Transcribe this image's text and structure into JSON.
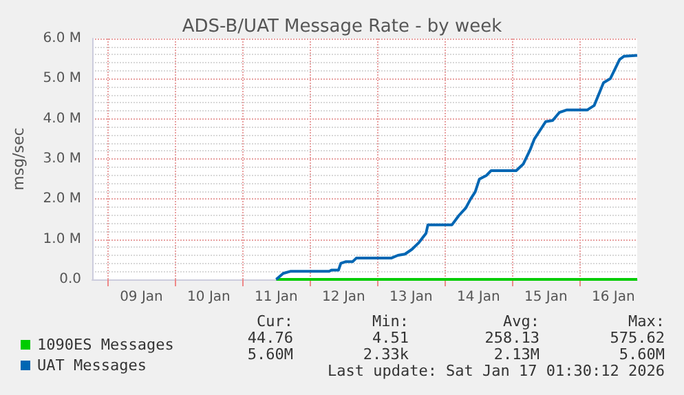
{
  "chart_data": {
    "type": "line",
    "title": "ADS-B/UAT Message Rate - by week",
    "ylabel": "msg/sec",
    "xlim": [
      "2026-01-08T18:30",
      "2026-01-16T20:30"
    ],
    "xticks": [
      {
        "value": "2026-01-09T00:00",
        "label": null
      },
      {
        "value": "2026-01-09T12:00",
        "label": "09 Jan"
      },
      {
        "value": "2026-01-10T00:00",
        "label": null
      },
      {
        "value": "2026-01-10T12:00",
        "label": "10 Jan"
      },
      {
        "value": "2026-01-11T00:00",
        "label": null
      },
      {
        "value": "2026-01-11T12:00",
        "label": "11 Jan"
      },
      {
        "value": "2026-01-12T00:00",
        "label": null
      },
      {
        "value": "2026-01-12T12:00",
        "label": "12 Jan"
      },
      {
        "value": "2026-01-13T00:00",
        "label": null
      },
      {
        "value": "2026-01-13T12:00",
        "label": "13 Jan"
      },
      {
        "value": "2026-01-14T00:00",
        "label": null
      },
      {
        "value": "2026-01-14T12:00",
        "label": "14 Jan"
      },
      {
        "value": "2026-01-15T00:00",
        "label": null
      },
      {
        "value": "2026-01-15T12:00",
        "label": "15 Jan"
      },
      {
        "value": "2026-01-16T00:00",
        "label": null
      },
      {
        "value": "2026-01-16T12:00",
        "label": "16 Jan"
      }
    ],
    "ylim": [
      0,
      6000000
    ],
    "yticks": [
      {
        "value": 0,
        "label": "0.0"
      },
      {
        "value": 1000000,
        "label": "1.0 M"
      },
      {
        "value": 2000000,
        "label": "2.0 M"
      },
      {
        "value": 3000000,
        "label": "3.0 M"
      },
      {
        "value": 4000000,
        "label": "4.0 M"
      },
      {
        "value": 5000000,
        "label": "5.0 M"
      },
      {
        "value": 6000000,
        "label": "6.0 M"
      }
    ],
    "grid": true,
    "legend": "bottom left",
    "marker": "none",
    "line_style": "solid",
    "series": [
      {
        "name": "1090ES Messages",
        "color": "#00cc00",
        "x": [
          "2026-01-11T12:00",
          "2026-01-16T20:30"
        ],
        "values": [
          0,
          0
        ]
      },
      {
        "name": "UAT Messages",
        "color": "#0066b3",
        "x": [
          "2026-01-11T12:00",
          "2026-01-11T14:30",
          "2026-01-11T17:00",
          "2026-01-12T06:50",
          "2026-01-12T07:40",
          "2026-01-12T10:10",
          "2026-01-12T11:00",
          "2026-01-12T12:40",
          "2026-01-12T15:10",
          "2026-01-12T16:30",
          "2026-01-13T04:55",
          "2026-01-13T07:20",
          "2026-01-13T09:50",
          "2026-01-13T12:20",
          "2026-01-13T14:50",
          "2026-01-13T17:20",
          "2026-01-13T18:00",
          "2026-01-14T02:35",
          "2026-01-14T05:00",
          "2026-01-14T07:30",
          "2026-01-14T09:10",
          "2026-01-14T10:50",
          "2026-01-14T12:20",
          "2026-01-14T14:50",
          "2026-01-14T16:30",
          "2026-01-15T01:25",
          "2026-01-15T03:55",
          "2026-01-15T06:20",
          "2026-01-15T07:55",
          "2026-01-15T11:55",
          "2026-01-15T14:25",
          "2026-01-15T16:50",
          "2026-01-15T19:20",
          "2026-01-16T02:40",
          "2026-01-16T05:10",
          "2026-01-16T08:30",
          "2026-01-16T10:55",
          "2026-01-16T14:15",
          "2026-01-16T15:50",
          "2026-01-16T20:30"
        ],
        "values": [
          0,
          150000,
          200000,
          200000,
          230000,
          230000,
          400000,
          440000,
          440000,
          530000,
          530000,
          600000,
          630000,
          750000,
          920000,
          1150000,
          1360000,
          1360000,
          1590000,
          1780000,
          2000000,
          2180000,
          2500000,
          2590000,
          2710000,
          2710000,
          2870000,
          3220000,
          3500000,
          3930000,
          3960000,
          4160000,
          4220000,
          4220000,
          4330000,
          4900000,
          5000000,
          5480000,
          5560000,
          5580000
        ]
      }
    ],
    "annotations": [
      "Cur:",
      "Min:",
      "Avg:",
      "Max:",
      "44.76",
      "4.51",
      "258.13",
      "575.62",
      "5.60M",
      "2.33k",
      "2.13M",
      "5.60M",
      "Last update: Sat Jan 17 01:30:12 2026"
    ]
  }
}
